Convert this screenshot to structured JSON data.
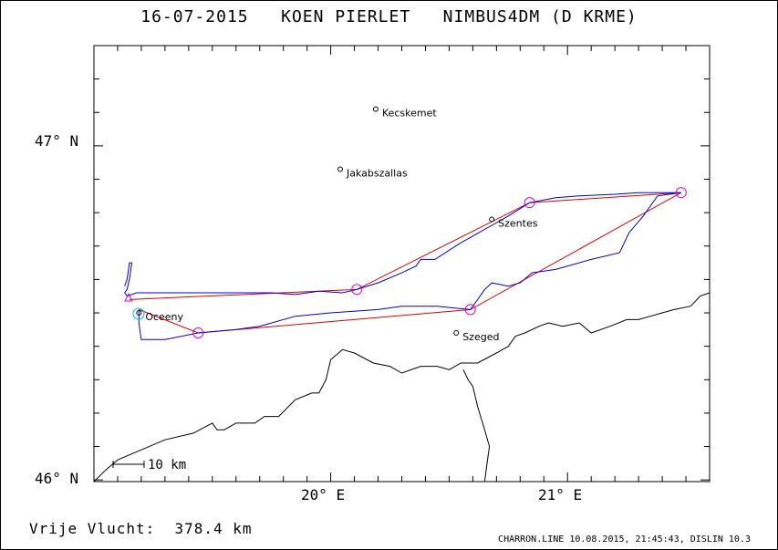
{
  "title": "16-07-2015   KOEN PIERLET   NIMBUS4DM (D KRME)",
  "footer": {
    "flight_label": "Vrije Vlucht:",
    "flight_distance": "378.4 km",
    "credits": "CHARRON.LINE 10.08.2015, 21:45:43, DISLIN 10.3"
  },
  "axes": {
    "lon_range": [
      19.0,
      21.6
    ],
    "lat_range": [
      45.995,
      47.3
    ],
    "lat_labels": [
      "47° N",
      "46° N"
    ],
    "lon_labels": [
      "20° E",
      "21° E"
    ]
  },
  "scale_bar": {
    "label": "10 km"
  },
  "places": [
    {
      "name": "Kecskemet",
      "lon": 20.19,
      "lat": 47.11
    },
    {
      "name": "Jakabszallas",
      "lon": 20.04,
      "lat": 46.93
    },
    {
      "name": "Szentes",
      "lon": 20.68,
      "lat": 46.78
    },
    {
      "name": "Oceeny",
      "lon": 19.19,
      "lat": 46.5
    },
    {
      "name": "Szeged",
      "lon": 20.53,
      "lat": 46.44
    }
  ],
  "turnpoints": [
    {
      "lon": 19.19,
      "lat": 46.51
    },
    {
      "lon": 19.44,
      "lat": 46.44
    },
    {
      "lon": 20.59,
      "lat": 46.51
    },
    {
      "lon": 21.48,
      "lat": 46.86
    },
    {
      "lon": 20.84,
      "lat": 46.83
    },
    {
      "lon": 20.11,
      "lat": 46.57
    },
    {
      "lon": 19.15,
      "lat": 46.54
    }
  ],
  "track": [
    [
      19.13,
      46.58
    ],
    [
      19.14,
      46.6
    ],
    [
      19.15,
      46.65
    ],
    [
      19.16,
      46.65
    ],
    [
      19.15,
      46.6
    ],
    [
      19.14,
      46.57
    ],
    [
      19.13,
      46.56
    ],
    [
      19.14,
      46.55
    ],
    [
      19.18,
      46.56
    ],
    [
      19.4,
      46.56
    ],
    [
      19.6,
      46.56
    ],
    [
      19.75,
      46.56
    ],
    [
      19.85,
      46.555
    ],
    [
      19.95,
      46.565
    ],
    [
      20.05,
      46.56
    ],
    [
      20.11,
      46.57
    ],
    [
      20.2,
      46.59
    ],
    [
      20.3,
      46.62
    ],
    [
      20.36,
      46.64
    ],
    [
      20.38,
      46.66
    ],
    [
      20.44,
      46.66
    ],
    [
      20.55,
      46.71
    ],
    [
      20.65,
      46.75
    ],
    [
      20.75,
      46.79
    ],
    [
      20.84,
      46.83
    ],
    [
      20.95,
      46.845
    ],
    [
      21.05,
      46.85
    ],
    [
      21.2,
      46.855
    ],
    [
      21.3,
      46.86
    ],
    [
      21.4,
      46.86
    ],
    [
      21.48,
      46.86
    ],
    [
      21.38,
      46.85
    ],
    [
      21.32,
      46.79
    ],
    [
      21.26,
      46.74
    ],
    [
      21.22,
      46.68
    ],
    [
      21.1,
      46.66
    ],
    [
      20.95,
      46.63
    ],
    [
      20.85,
      46.62
    ],
    [
      20.8,
      46.59
    ],
    [
      20.75,
      46.58
    ],
    [
      20.68,
      46.59
    ],
    [
      20.65,
      46.57
    ],
    [
      20.59,
      46.51
    ],
    [
      20.45,
      46.52
    ],
    [
      20.3,
      46.52
    ],
    [
      20.2,
      46.51
    ],
    [
      20.0,
      46.5
    ],
    [
      19.85,
      46.49
    ],
    [
      19.7,
      46.46
    ],
    [
      19.6,
      46.45
    ],
    [
      19.44,
      46.44
    ],
    [
      19.3,
      46.42
    ],
    [
      19.2,
      46.42
    ],
    [
      19.19,
      46.47
    ],
    [
      19.19,
      46.51
    ]
  ],
  "border": [
    [
      19.0,
      45.995
    ],
    [
      19.05,
      46.03
    ],
    [
      19.1,
      46.06
    ],
    [
      19.2,
      46.09
    ],
    [
      19.3,
      46.12
    ],
    [
      19.42,
      46.14
    ],
    [
      19.5,
      46.17
    ],
    [
      19.52,
      46.15
    ],
    [
      19.55,
      46.15
    ],
    [
      19.6,
      46.17
    ],
    [
      19.68,
      46.17
    ],
    [
      19.72,
      46.19
    ],
    [
      19.78,
      46.19
    ],
    [
      19.85,
      46.24
    ],
    [
      19.92,
      46.26
    ],
    [
      19.95,
      46.26
    ],
    [
      19.98,
      46.3
    ],
    [
      20.0,
      46.36
    ],
    [
      20.05,
      46.39
    ],
    [
      20.1,
      46.38
    ],
    [
      20.18,
      46.35
    ],
    [
      20.25,
      46.34
    ],
    [
      20.3,
      46.32
    ],
    [
      20.38,
      46.34
    ],
    [
      20.45,
      46.34
    ],
    [
      20.5,
      46.33
    ],
    [
      20.55,
      46.35
    ],
    [
      20.62,
      46.35
    ],
    [
      20.7,
      46.38
    ],
    [
      20.75,
      46.4
    ],
    [
      20.78,
      46.43
    ],
    [
      20.82,
      46.44
    ],
    [
      20.88,
      46.46
    ],
    [
      20.92,
      46.47
    ],
    [
      20.98,
      46.46
    ],
    [
      21.05,
      46.47
    ],
    [
      21.1,
      46.44
    ],
    [
      21.18,
      46.46
    ],
    [
      21.25,
      46.48
    ],
    [
      21.3,
      46.48
    ],
    [
      21.35,
      46.49
    ],
    [
      21.4,
      46.5
    ],
    [
      21.45,
      46.51
    ],
    [
      21.52,
      46.52
    ],
    [
      21.56,
      46.55
    ],
    [
      21.6,
      46.56
    ]
  ],
  "river": [
    [
      20.65,
      45.995
    ],
    [
      20.66,
      46.05
    ],
    [
      20.67,
      46.1
    ],
    [
      20.65,
      46.15
    ],
    [
      20.62,
      46.22
    ],
    [
      20.6,
      46.28
    ],
    [
      20.58,
      46.3
    ],
    [
      20.56,
      46.33
    ]
  ]
}
